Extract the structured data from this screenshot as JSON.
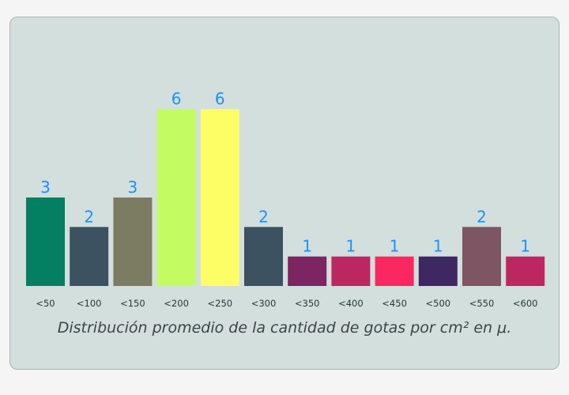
{
  "chart_data": {
    "type": "bar",
    "categories": [
      "<50",
      "<100",
      "<150",
      "<200",
      "<250",
      "<300",
      "<350",
      "<400",
      "<450",
      "<500",
      "<550",
      "<600"
    ],
    "values": [
      3,
      2,
      3,
      6,
      6,
      2,
      1,
      1,
      1,
      1,
      2,
      1
    ],
    "colors": [
      "#047f62",
      "#3c5260",
      "#7c7c62",
      "#c2fc60",
      "#fdfd65",
      "#3c5260",
      "#7c2562",
      "#bd2761",
      "#fb2761",
      "#3e2862",
      "#7e5562",
      "#bd2761"
    ],
    "title": "Distribución promedio de la cantidad de gotas por cm² en μ.",
    "xlabel": "",
    "ylabel": "",
    "ylim": [
      0,
      6
    ],
    "grid": false,
    "value_label_color": "#1e90ff",
    "card_color": "#d2dfdc"
  }
}
